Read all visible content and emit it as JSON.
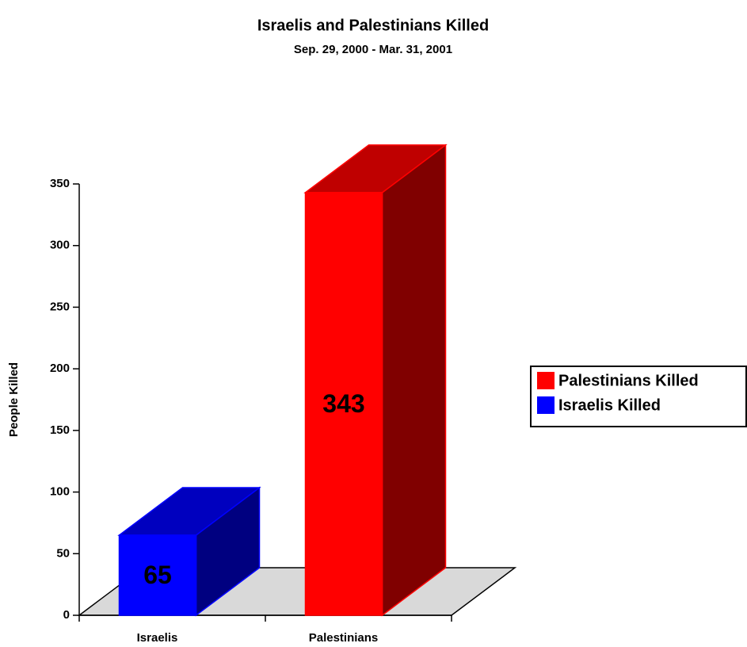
{
  "chart_data": {
    "type": "bar3d",
    "title": "Israelis and Palestinians Killed",
    "subtitle": "Sep. 29, 2000 - Mar. 31, 2001",
    "y_label": "People Killed",
    "categories": [
      "Israelis",
      "Palestinians"
    ],
    "series": [
      {
        "name": "Palestinians Killed",
        "color": "#ff0000",
        "values": [
          null,
          343
        ]
      },
      {
        "name": "Israelis Killed",
        "color": "#0000ff",
        "values": [
          65,
          null
        ]
      }
    ],
    "ylim": [
      0,
      350
    ],
    "yticks": [
      0,
      50,
      100,
      150,
      200,
      250,
      300,
      350
    ],
    "legend": "right"
  }
}
